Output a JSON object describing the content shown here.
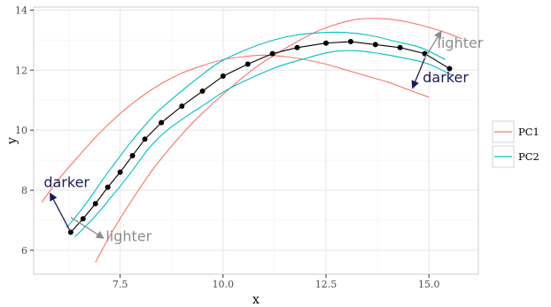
{
  "chart_data": {
    "type": "line",
    "xlabel": "x",
    "ylabel": "y",
    "xlim": [
      5.4,
      16.2
    ],
    "ylim": [
      5.2,
      14.1
    ],
    "xticks": [
      7.5,
      10.0,
      12.5,
      15.0
    ],
    "xtick_labels": [
      "7.5",
      "10.0",
      "12.5",
      "15.0"
    ],
    "yticks": [
      6,
      8,
      10,
      12,
      14
    ],
    "ytick_labels": [
      "6",
      "8",
      "10",
      "12",
      "14"
    ],
    "grid": true,
    "legend": {
      "position": "right",
      "entries": [
        {
          "label": "PC1",
          "color": "#f8766d"
        },
        {
          "label": "PC2",
          "color": "#00bfc4"
        }
      ]
    },
    "colors": {
      "pc1": "#f8766d",
      "pc2": "#00bfc4",
      "points": "#000000",
      "darker": "#1f1a57",
      "lighter": "#8c8c8c"
    },
    "center_points": {
      "x": [
        6.3,
        6.6,
        6.9,
        7.2,
        7.5,
        7.8,
        8.1,
        8.5,
        9.0,
        9.5,
        10.0,
        10.6,
        11.2,
        11.8,
        12.5,
        13.1,
        13.7,
        14.3,
        14.9,
        15.5
      ],
      "y": [
        6.6,
        7.05,
        7.55,
        8.1,
        8.6,
        9.15,
        9.7,
        10.25,
        10.8,
        11.3,
        11.8,
        12.2,
        12.55,
        12.75,
        12.9,
        12.95,
        12.85,
        12.75,
        12.55,
        12.05
      ]
    },
    "series": [
      {
        "name": "PC1",
        "color": "#f8766d",
        "x": [
          5.6,
          6.0,
          6.5,
          7.0,
          7.5,
          8.0,
          8.5,
          9.0,
          9.5,
          10.0,
          10.5,
          11.0,
          11.5,
          12.0,
          12.5,
          13.0,
          13.5,
          14.0,
          14.5,
          15.0
        ],
        "y": [
          7.6,
          8.35,
          9.15,
          9.9,
          10.55,
          11.1,
          11.55,
          11.9,
          12.15,
          12.35,
          12.45,
          12.5,
          12.45,
          12.35,
          12.2,
          12.0,
          11.8,
          11.6,
          11.35,
          11.1
        ]
      },
      {
        "name": "PC1",
        "color": "#f8766d",
        "x": [
          6.9,
          7.3,
          7.8,
          8.3,
          8.8,
          9.3,
          9.8,
          10.3,
          10.8,
          11.3,
          11.8,
          12.3,
          12.8,
          13.3,
          13.8,
          14.3,
          14.8,
          15.3,
          15.8
        ],
        "y": [
          5.6,
          6.6,
          7.7,
          8.7,
          9.55,
          10.3,
          10.95,
          11.55,
          12.1,
          12.55,
          12.95,
          13.3,
          13.55,
          13.7,
          13.72,
          13.65,
          13.5,
          13.3,
          13.05
        ]
      },
      {
        "name": "PC2",
        "color": "#00bfc4",
        "x": [
          6.2,
          6.5,
          6.8,
          7.1,
          7.4,
          7.7,
          8.0,
          8.4,
          8.9,
          9.4,
          9.9,
          10.5,
          11.1,
          11.7,
          12.4,
          13.0,
          13.6,
          14.2,
          14.8,
          15.4
        ],
        "y": [
          6.75,
          7.25,
          7.8,
          8.4,
          8.95,
          9.5,
          10.0,
          10.6,
          11.2,
          11.75,
          12.25,
          12.65,
          12.95,
          13.15,
          13.25,
          13.25,
          13.15,
          12.95,
          12.75,
          12.35
        ]
      },
      {
        "name": "PC2",
        "color": "#00bfc4",
        "x": [
          6.4,
          6.7,
          7.0,
          7.3,
          7.6,
          7.9,
          8.2,
          8.6,
          9.1,
          9.6,
          10.1,
          10.7,
          11.3,
          11.9,
          12.6,
          13.2,
          13.8,
          14.4,
          15.0,
          15.6
        ],
        "y": [
          6.45,
          6.85,
          7.3,
          7.8,
          8.3,
          8.85,
          9.4,
          9.95,
          10.45,
          10.9,
          11.35,
          11.75,
          12.1,
          12.35,
          12.6,
          12.65,
          12.55,
          12.4,
          12.2,
          11.8
        ]
      }
    ],
    "annotations": [
      {
        "text": "darker",
        "color": "#1f1a57",
        "x": 6.2,
        "y": 8.1,
        "arrow_to": [
          5.8,
          7.9
        ],
        "arrow_from": [
          6.3,
          6.6
        ]
      },
      {
        "text": "lighter",
        "color": "#8c8c8c",
        "x": 7.15,
        "y": 6.3,
        "arrow_to": [
          7.1,
          6.4
        ],
        "arrow_from": [
          6.3,
          7.1
        ]
      },
      {
        "text": "darker",
        "color": "#1f1a57",
        "x": 14.85,
        "y": 11.6,
        "arrow_to": [
          14.6,
          11.4
        ],
        "arrow_from": [
          14.9,
          12.4
        ]
      },
      {
        "text": "lighter",
        "color": "#8c8c8c",
        "x": 15.2,
        "y": 12.75,
        "arrow_to": [
          15.3,
          13.3
        ],
        "arrow_from": [
          14.9,
          12.4
        ]
      }
    ]
  }
}
